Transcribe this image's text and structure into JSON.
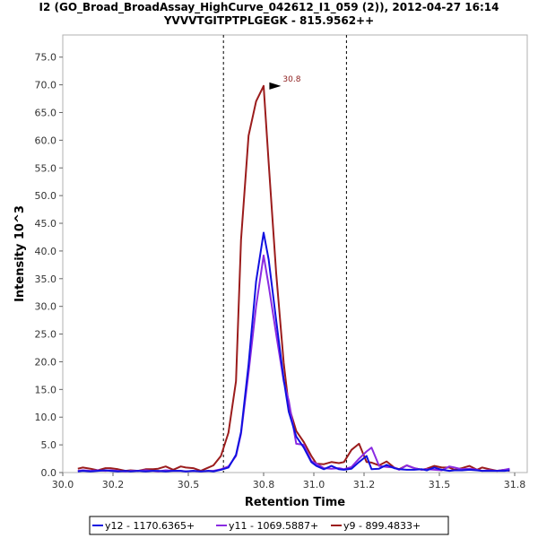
{
  "chart_data": {
    "type": "line",
    "title": "I2 (GO_Broad_BroadAssay_HighCurve_042612_I1_059 (2)), 2012-04-27 16:14",
    "subtitle": "YVVVTGITPTPLGEGK - 815.9562++",
    "xlabel": "Retention Time",
    "ylabel": "Intensity 10^3",
    "xlim": [
      30.0,
      31.85
    ],
    "ylim": [
      0,
      79
    ],
    "xticks": [
      30.0,
      30.2,
      30.5,
      30.8,
      31.0,
      31.2,
      31.5,
      31.8
    ],
    "xtick_labels": [
      "30.0",
      "30.2",
      "30.5",
      "30.8",
      "31.0",
      "31.2",
      "31.5",
      "31.8"
    ],
    "yticks": [
      0,
      5,
      10,
      15,
      20,
      25,
      30,
      35,
      40,
      45,
      50,
      55,
      60,
      65,
      70,
      75
    ],
    "ytick_labels": [
      "0.0",
      "5.0",
      "10.0",
      "15.0",
      "20.0",
      "25.0",
      "30.0",
      "35.0",
      "40.0",
      "45.0",
      "50.0",
      "55.0",
      "60.0",
      "65.0",
      "70.0",
      "75.0"
    ],
    "vlines": [
      30.64,
      31.13
    ],
    "peak_annotation": {
      "x": 30.88,
      "y": 69.8,
      "label": "30.8"
    },
    "legend_position": "bottom",
    "series": [
      {
        "name": "y12 - 1170.6365+",
        "color": "#1010e0",
        "x": [
          30.06,
          30.08,
          30.11,
          30.14,
          30.17,
          30.19,
          30.22,
          30.25,
          30.27,
          30.3,
          30.33,
          30.36,
          30.38,
          30.41,
          30.44,
          30.47,
          30.49,
          30.52,
          30.55,
          30.58,
          30.6,
          30.63,
          30.66,
          30.69,
          30.71,
          30.74,
          30.77,
          30.8,
          30.82,
          30.85,
          30.88,
          30.9,
          30.93,
          30.96,
          30.99,
          31.01,
          31.04,
          31.07,
          31.1,
          31.12,
          31.15,
          31.18,
          31.21,
          31.23,
          31.26,
          31.29,
          31.32,
          31.34,
          31.37,
          31.4,
          31.43,
          31.45,
          31.48,
          31.51,
          31.54,
          31.56,
          31.59,
          31.62,
          31.65,
          31.67,
          31.7,
          31.73,
          31.76,
          31.78
        ],
        "values": [
          0.2,
          0.3,
          0.2,
          0.3,
          0.4,
          0.3,
          0.2,
          0.3,
          0.2,
          0.3,
          0.2,
          0.3,
          0.3,
          0.2,
          0.3,
          0.3,
          0.2,
          0.3,
          0.2,
          0.3,
          0.2,
          0.5,
          0.9,
          3.2,
          7.3,
          19.5,
          34.5,
          43.3,
          38.5,
          27.5,
          16.8,
          11.0,
          6.5,
          4.5,
          1.9,
          1.2,
          0.6,
          1.2,
          0.6,
          0.5,
          0.7,
          1.9,
          3.0,
          0.6,
          0.7,
          1.4,
          0.8,
          0.6,
          0.5,
          0.5,
          0.6,
          0.4,
          0.9,
          0.5,
          0.3,
          0.4,
          0.4,
          0.5,
          0.4,
          0.3,
          0.3,
          0.3,
          0.3,
          0.4
        ]
      },
      {
        "name": "y11 - 1069.5887+",
        "color": "#8a2be2",
        "x": [
          30.06,
          30.08,
          30.11,
          30.14,
          30.17,
          30.19,
          30.22,
          30.25,
          30.27,
          30.3,
          30.33,
          30.36,
          30.38,
          30.41,
          30.44,
          30.47,
          30.49,
          30.52,
          30.55,
          30.58,
          30.6,
          30.63,
          30.66,
          30.69,
          30.71,
          30.74,
          30.77,
          30.8,
          30.82,
          30.85,
          30.88,
          30.9,
          30.93,
          30.96,
          30.99,
          31.01,
          31.04,
          31.07,
          31.1,
          31.12,
          31.15,
          31.18,
          31.21,
          31.23,
          31.26,
          31.29,
          31.32,
          31.34,
          31.37,
          31.4,
          31.43,
          31.45,
          31.48,
          31.51,
          31.54,
          31.56,
          31.59,
          31.62,
          31.65,
          31.67,
          31.7,
          31.73,
          31.76,
          31.78
        ],
        "values": [
          0.3,
          0.4,
          0.3,
          0.4,
          0.3,
          0.4,
          0.3,
          0.2,
          0.3,
          0.3,
          0.4,
          0.3,
          0.2,
          0.4,
          0.3,
          0.3,
          0.2,
          0.3,
          0.2,
          0.3,
          0.3,
          0.6,
          1.1,
          3.0,
          7.0,
          18.0,
          30.0,
          39.2,
          33.8,
          25.0,
          16.5,
          13.0,
          5.2,
          5.0,
          2.1,
          1.6,
          0.8,
          0.7,
          0.8,
          0.6,
          1.0,
          2.5,
          3.8,
          4.5,
          1.2,
          1.0,
          0.9,
          0.5,
          1.3,
          0.8,
          0.5,
          0.6,
          0.5,
          0.4,
          1.1,
          0.9,
          0.6,
          0.7,
          0.5,
          0.3,
          0.4,
          0.3,
          0.5,
          0.7
        ]
      },
      {
        "name": "y9 - 899.4833+",
        "color": "#9b1c1c",
        "x": [
          30.06,
          30.08,
          30.11,
          30.14,
          30.17,
          30.19,
          30.22,
          30.25,
          30.27,
          30.3,
          30.33,
          30.36,
          30.38,
          30.41,
          30.44,
          30.47,
          30.49,
          30.52,
          30.55,
          30.58,
          30.6,
          30.63,
          30.66,
          30.69,
          30.71,
          30.74,
          30.77,
          30.8,
          30.82,
          30.85,
          30.88,
          30.9,
          30.93,
          30.96,
          30.99,
          31.01,
          31.04,
          31.07,
          31.1,
          31.12,
          31.15,
          31.18,
          31.21,
          31.23,
          31.26,
          31.29,
          31.32,
          31.34,
          31.37,
          31.4,
          31.43,
          31.45,
          31.48,
          31.51,
          31.54,
          31.56,
          31.59,
          31.62,
          31.65,
          31.67,
          31.7,
          31.73,
          31.76,
          31.78
        ],
        "values": [
          0.7,
          0.9,
          0.7,
          0.4,
          0.8,
          0.8,
          0.6,
          0.3,
          0.4,
          0.3,
          0.6,
          0.6,
          0.7,
          1.1,
          0.5,
          1.1,
          0.9,
          0.8,
          0.3,
          0.9,
          1.3,
          3.0,
          7.2,
          16.5,
          42.0,
          60.8,
          67.0,
          69.8,
          56.0,
          36.0,
          19.8,
          12.0,
          7.5,
          5.5,
          3.0,
          1.6,
          1.5,
          1.9,
          1.7,
          1.9,
          4.1,
          5.2,
          1.9,
          1.8,
          1.3,
          2.0,
          0.9,
          0.6,
          1.3,
          0.8,
          0.5,
          0.7,
          1.2,
          0.9,
          0.9,
          0.5,
          0.8,
          1.2,
          0.5,
          0.9,
          0.6,
          0.3,
          0.5,
          0.3
        ]
      }
    ]
  }
}
